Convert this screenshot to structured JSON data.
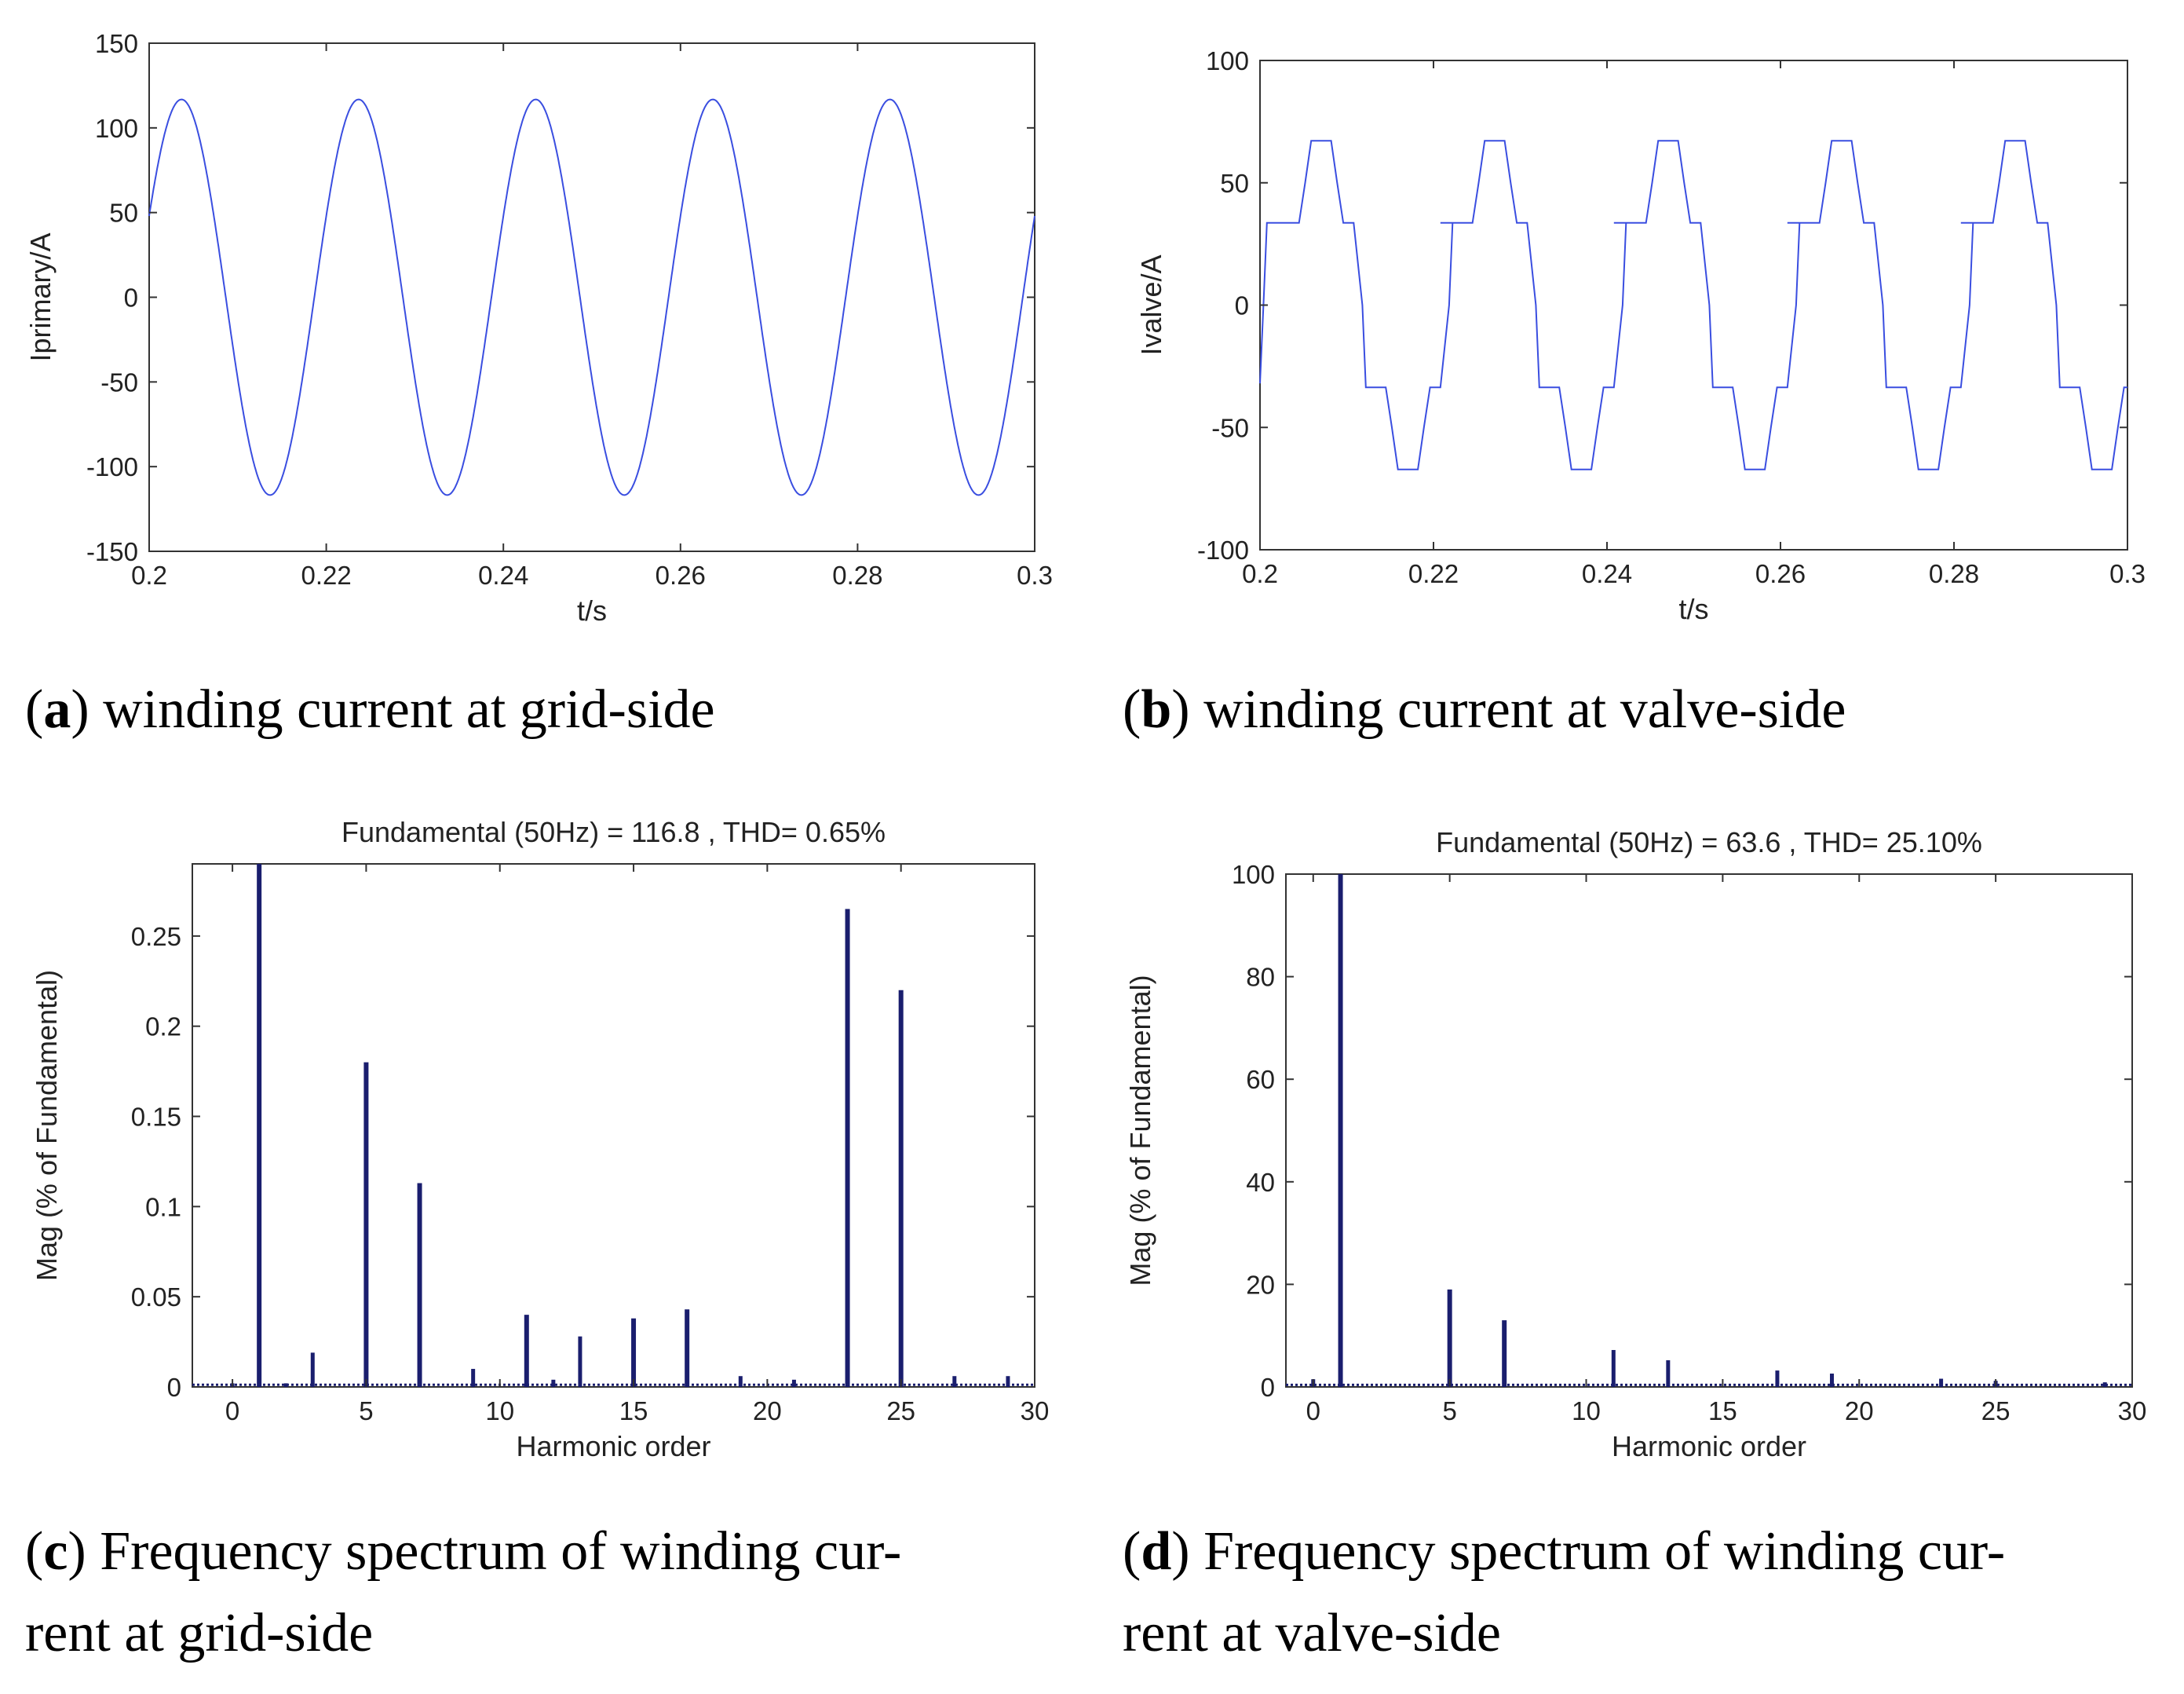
{
  "chart_data": [
    {
      "id": "a",
      "type": "line",
      "title": "",
      "xlabel": "t/s",
      "ylabel": "Iprimary/A",
      "xlim": [
        0.2,
        0.3
      ],
      "ylim": [
        -150,
        150
      ],
      "xticks": [
        "0.2",
        "0.22",
        "0.24",
        "0.26",
        "0.28",
        "0.3"
      ],
      "yticks": [
        "150",
        "100",
        "50",
        "0",
        "-50",
        "-100",
        "-150"
      ],
      "series": [
        {
          "waveform": "sine",
          "amplitude": 116.8,
          "frequency_hz": 50,
          "value_at_0.2": 48,
          "color": "#3a4ee0"
        }
      ],
      "grid": false,
      "caption": {
        "label": "a",
        "text": "winding current at grid-side"
      }
    },
    {
      "id": "b",
      "type": "line",
      "title": "",
      "xlabel": "t/s",
      "ylabel": "Ivalve/A",
      "xlim": [
        0.2,
        0.3
      ],
      "ylim": [
        -100,
        100
      ],
      "xticks": [
        "0.2",
        "0.22",
        "0.24",
        "0.26",
        "0.28",
        "0.3"
      ],
      "yticks": [
        "100",
        "50",
        "0",
        "-50",
        "-100"
      ],
      "series": [
        {
          "waveform": "stepped",
          "period_s": 0.02,
          "x": [
            0.2,
            0.2004,
            0.2008,
            0.2045,
            0.2052,
            0.2059,
            0.2082,
            0.2089,
            0.2096,
            0.2108,
            0.2118,
            0.2122,
            0.2126,
            0.2145,
            0.2152,
            0.2159,
            0.2182,
            0.2189,
            0.2196,
            0.2208,
            0.2218,
            0.2222
          ],
          "values": [
            -32,
            0,
            33.6,
            33.6,
            50,
            67.2,
            67.2,
            50,
            33.6,
            33.6,
            0,
            -33.6,
            -33.6,
            -33.6,
            -50,
            -67.2,
            -67.2,
            -50,
            -33.6,
            -33.6,
            0,
            33.6
          ],
          "color": "#3a4ee0"
        }
      ],
      "grid": false,
      "caption": {
        "label": "b",
        "text": "winding current at valve-side"
      }
    },
    {
      "id": "c",
      "type": "bar",
      "title": "Fundamental (50Hz) = 116.8 , THD= 0.65%",
      "xlabel": "Harmonic order",
      "ylabel": "Mag (% of Fundamental)",
      "xlim": [
        -1.5,
        30
      ],
      "ylim": [
        0,
        0.29
      ],
      "xticks": [
        "0",
        "5",
        "10",
        "15",
        "20",
        "25",
        "30"
      ],
      "yticks": [
        "0",
        "0.05",
        "0.1",
        "0.15",
        "0.2",
        "0.25"
      ],
      "x": [
        0,
        1,
        2,
        3,
        5,
        7,
        9,
        11,
        12,
        13,
        15,
        17,
        19,
        21,
        23,
        25,
        27,
        29
      ],
      "values": [
        0.002,
        0.29,
        0.002,
        0.019,
        0.18,
        0.113,
        0.01,
        0.04,
        0.004,
        0.028,
        0.038,
        0.043,
        0.006,
        0.004,
        0.265,
        0.22,
        0.006,
        0.006
      ],
      "noise_floor": 0.0012,
      "color": "#1a1e6e",
      "grid": false,
      "caption": {
        "label": "c",
        "text": "Frequency spectrum of winding cur-",
        "text2": "rent at grid-side"
      }
    },
    {
      "id": "d",
      "type": "bar",
      "title": "Fundamental (50Hz) = 63.6 , THD= 25.10%",
      "xlabel": "Harmonic order",
      "ylabel": "Mag (% of Fundamental)",
      "xlim": [
        -1,
        30
      ],
      "ylim": [
        0,
        100
      ],
      "xticks": [
        "0",
        "5",
        "10",
        "15",
        "20",
        "25",
        "30"
      ],
      "yticks": [
        "100",
        "80",
        "60",
        "40",
        "20",
        "0"
      ],
      "x": [
        0,
        1,
        5,
        7,
        11,
        13,
        17,
        19,
        23,
        25,
        29
      ],
      "values": [
        1.5,
        100,
        19,
        13,
        7.2,
        5.2,
        3.2,
        2.6,
        1.6,
        1.2,
        0.9
      ],
      "noise_floor": 0.4,
      "color": "#1a1e6e",
      "grid": false,
      "caption": {
        "label": "d",
        "text": "Frequency spectrum of winding cur-",
        "text2": "rent at valve-side"
      }
    }
  ]
}
